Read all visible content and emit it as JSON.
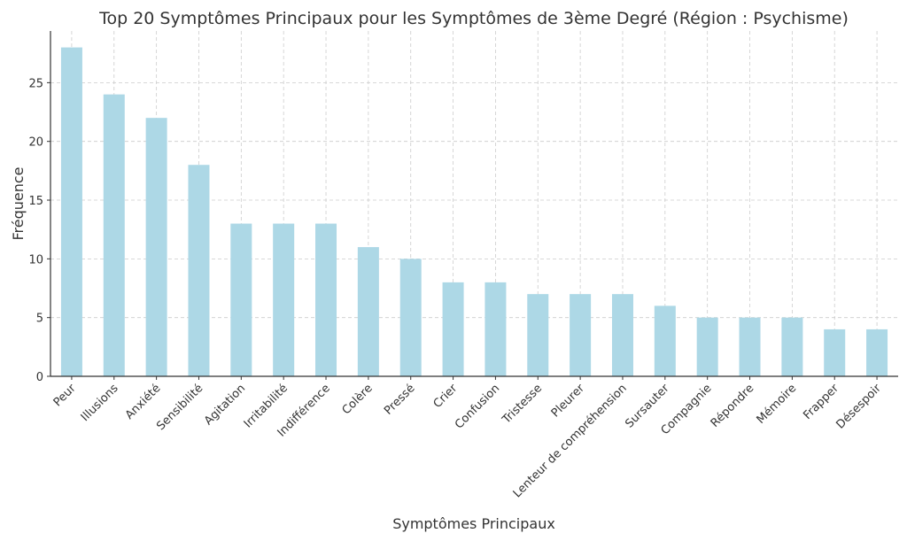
{
  "chart_data": {
    "type": "bar",
    "title": "Top 20 Symptômes Principaux pour les Symptômes de 3ème Degré (Région : Psychisme)",
    "xlabel": "Symptômes Principaux",
    "ylabel": "Fréquence",
    "categories": [
      "Peur",
      "Illusions",
      "Anxiété",
      "Sensibilité",
      "Agitation",
      "Irritabilité",
      "Indifférence",
      "Colère",
      "Pressé",
      "Crier",
      "Confusion",
      "Tristesse",
      "Pleurer",
      "Lenteur de compréhension",
      "Sursauter",
      "Compagnie",
      "Répondre",
      "Mémoire",
      "Frapper",
      "Désespoir"
    ],
    "values": [
      28,
      24,
      22,
      18,
      13,
      13,
      13,
      11,
      10,
      8,
      8,
      7,
      7,
      7,
      6,
      5,
      5,
      5,
      4,
      4
    ],
    "ylim": [
      0,
      29.4
    ],
    "yticks": [
      0,
      5,
      10,
      15,
      20,
      25
    ],
    "grid": true,
    "bar_color": "#add8e6",
    "x_tick_rotation": 45
  }
}
